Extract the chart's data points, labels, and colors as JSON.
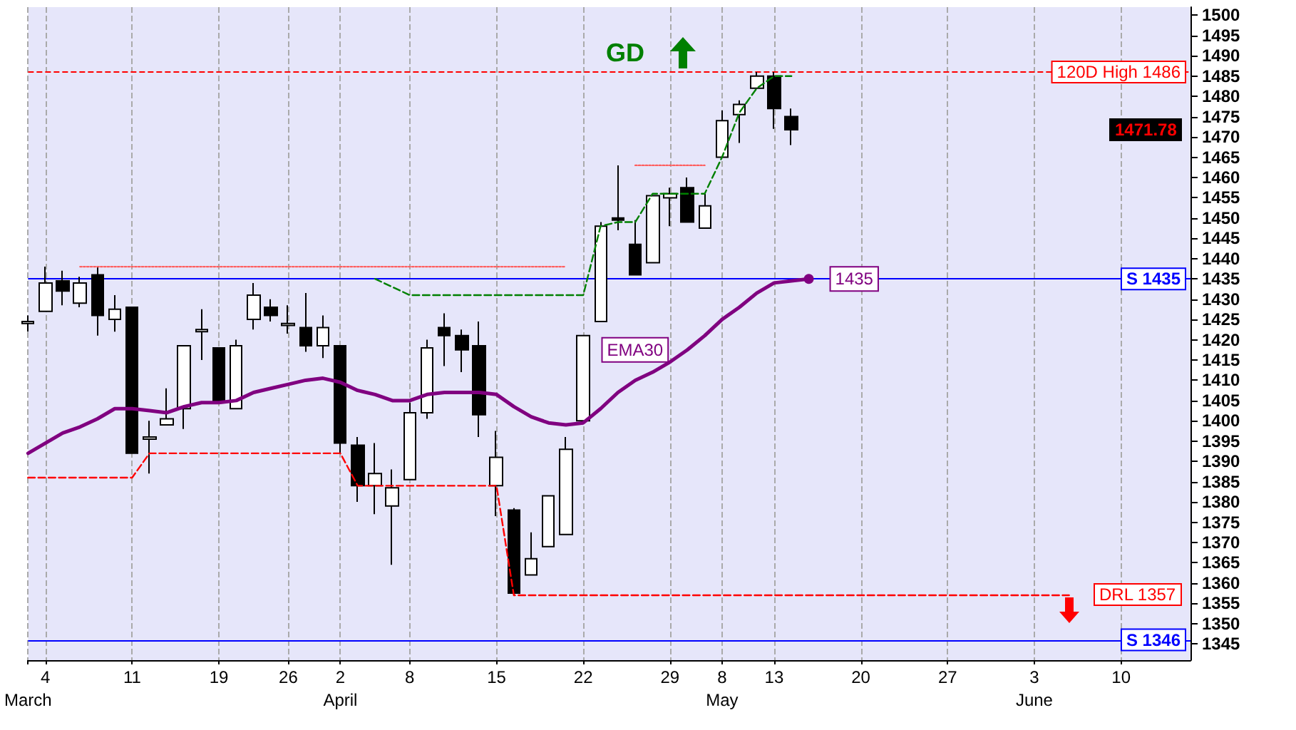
{
  "chart_data": {
    "type": "candlestick",
    "categories": [
      "\nMarch",
      "4",
      null,
      null,
      null,
      null,
      "11",
      null,
      null,
      null,
      null,
      "19",
      null,
      null,
      null,
      "26",
      null,
      null,
      "2\nApril",
      null,
      null,
      null,
      "8",
      null,
      null,
      null,
      null,
      "15",
      null,
      null,
      null,
      null,
      "22",
      null,
      null,
      null,
      null,
      "29",
      null,
      null,
      "8\nMay",
      null,
      null,
      "13",
      null,
      null,
      null,
      null,
      "20",
      null,
      null,
      null,
      null,
      "27",
      null,
      null,
      null,
      null,
      "3\nJune",
      null,
      null,
      null,
      null,
      "10",
      null,
      null,
      null,
      null
    ],
    "ohlc": [
      [
        1424,
        1426,
        1422,
        1424.5
      ],
      [
        1427,
        1438,
        1427,
        1434
      ],
      [
        1434.5,
        1437,
        1428.5,
        1432
      ],
      [
        1429,
        1435.5,
        1428,
        1434
      ],
      [
        1436,
        1438,
        1421,
        1426
      ],
      [
        1425,
        1431,
        1422,
        1427.5
      ],
      [
        1428,
        1428,
        1392,
        1392
      ],
      [
        1395.5,
        1400,
        1387,
        1396
      ],
      [
        1399,
        1408,
        1399,
        1400.5
      ],
      [
        1403,
        1418.5,
        1398,
        1418.5
      ],
      [
        1422,
        1427.5,
        1415,
        1422.5
      ],
      [
        1418,
        1418,
        1404.5,
        1404.5
      ],
      [
        1403,
        1420,
        1403,
        1418.5
      ],
      [
        1425,
        1434,
        1422.5,
        1431
      ],
      [
        1428,
        1430,
        1424.5,
        1426
      ],
      [
        1423.5,
        1428.5,
        1421.5,
        1424
      ],
      [
        1423,
        1431.5,
        1417,
        1418.5
      ],
      [
        1418.5,
        1426,
        1415.5,
        1423
      ],
      [
        1418.5,
        1418.5,
        1392,
        1394.5
      ],
      [
        1394,
        1396,
        1380,
        1384
      ],
      [
        1384,
        1394.5,
        1377,
        1387
      ],
      [
        1379,
        1388,
        1364.5,
        1383.5
      ],
      [
        1385.5,
        1404.5,
        1385.5,
        1402
      ],
      [
        1402,
        1420,
        1400.5,
        1418
      ],
      [
        1423,
        1426.5,
        1413.5,
        1421
      ],
      [
        1421,
        1422.5,
        1412,
        1417.5
      ],
      [
        1418.5,
        1424.5,
        1396,
        1401.5
      ],
      [
        1384,
        1397.5,
        1376.5,
        1391
      ],
      [
        1378,
        1378.5,
        1357,
        1357.5
      ],
      [
        1362,
        1372.5,
        1362,
        1366
      ],
      [
        1369,
        1381.5,
        1369,
        1381.5
      ],
      [
        1372,
        1396,
        1372,
        1393
      ],
      [
        1400,
        1421,
        1400,
        1421
      ],
      [
        1424.5,
        1449,
        1424.5,
        1448
      ],
      [
        1450,
        1463,
        1447,
        1449.5
      ],
      [
        1443.5,
        1449.5,
        1436,
        1436
      ],
      [
        1439,
        1455.5,
        1439,
        1455.5
      ],
      [
        1455,
        1457.5,
        1448,
        1456
      ],
      [
        1457.5,
        1460,
        1449,
        1449
      ],
      [
        1447.5,
        1456,
        1447.5,
        1453
      ],
      [
        1465,
        1476.5,
        1465,
        1474
      ],
      [
        1475.5,
        1479,
        1468.5,
        1478
      ],
      [
        1482,
        1486,
        1482,
        1485
      ],
      [
        1485,
        1486,
        1472,
        1477
      ],
      [
        1475,
        1477,
        1468,
        1471.78
      ],
      null,
      null,
      null,
      null,
      null,
      null,
      null,
      null,
      null,
      null,
      null,
      null,
      null,
      null,
      null,
      null,
      null,
      null,
      null,
      null,
      null,
      null,
      null
    ],
    "series": [
      {
        "type": "line",
        "name": "EMA30",
        "color": "#800080",
        "values": [
          1392,
          1394.5,
          1397,
          1398.5,
          1400.5,
          1403,
          1403,
          1402.5,
          1402,
          1403.5,
          1404.5,
          1404.5,
          1405,
          1407,
          1408,
          1409,
          1410,
          1410.5,
          1409.5,
          1407.5,
          1406.5,
          1405,
          1405,
          1406.5,
          1407,
          1407,
          1407,
          1406.5,
          1403.5,
          1401,
          1399.5,
          1399,
          1399.5,
          1403,
          1407,
          1410,
          1412,
          1414.5,
          1417.5,
          1421,
          1425,
          1428,
          1431.5,
          1434,
          1434.5,
          1435,
          null,
          null,
          null,
          null,
          null,
          null,
          null,
          null,
          null,
          null,
          null,
          null,
          null,
          null,
          null,
          null,
          null,
          null,
          null,
          null,
          null,
          null
        ],
        "value_labels": [
          null,
          null,
          null,
          null,
          null,
          null,
          null,
          null,
          null,
          null,
          null,
          null,
          null,
          null,
          null,
          null,
          null,
          null,
          null,
          null,
          null,
          null,
          null,
          null,
          null,
          null,
          null,
          null,
          null,
          null,
          null,
          null,
          null,
          null,
          null,
          null,
          null,
          null,
          null,
          null,
          null,
          null,
          null,
          null,
          null,
          "1435",
          null,
          null,
          null,
          null,
          null,
          null,
          null,
          null,
          null,
          null,
          null,
          null,
          null,
          null,
          null,
          null,
          null,
          null,
          null,
          null,
          null,
          null
        ]
      },
      {
        "type": "line",
        "color": "#ff0000",
        "line_style": "dashed",
        "values": [
          1386,
          1386,
          1386,
          1386,
          1386,
          1386,
          1386,
          1392,
          1392,
          1392,
          1392,
          1392,
          1392,
          1392,
          1392,
          1392,
          1392,
          1392,
          1392,
          1384,
          1384,
          1384,
          1384,
          1384,
          1384,
          1384,
          1384,
          1384,
          1357,
          1357,
          1357,
          1357,
          1357,
          1357,
          1357,
          1357,
          1357,
          1357,
          1357,
          1357,
          1357,
          1357,
          1357,
          1357,
          1357,
          1357,
          1357,
          1357,
          1357,
          1357,
          1357,
          1357,
          1357,
          1357,
          1357,
          1357,
          1357,
          1357,
          1357,
          1357,
          1357,
          null,
          null,
          null,
          null,
          null,
          null,
          null
        ]
      },
      {
        "type": "line",
        "color": "#008000",
        "line_style": "dashed",
        "values": [
          null,
          null,
          null,
          null,
          null,
          null,
          null,
          null,
          null,
          null,
          null,
          null,
          null,
          null,
          null,
          null,
          null,
          null,
          null,
          null,
          1435,
          1433,
          1431,
          1431,
          1431,
          1431,
          1431,
          1431,
          1431,
          1431,
          1431,
          1431,
          1431,
          1448,
          1449,
          1449,
          1456,
          1456,
          1456,
          1456,
          1465,
          1476,
          1482,
          1485,
          1485,
          null,
          null,
          null,
          null,
          null,
          null,
          null,
          null,
          null,
          null,
          null,
          null,
          null,
          null,
          null,
          null,
          null,
          null,
          null,
          null,
          null,
          null,
          null
        ]
      },
      {
        "type": "line",
        "color": "#ff6060",
        "line_style": "dotted",
        "values": [
          null,
          null,
          null,
          1438,
          1438,
          1438,
          1438,
          1438,
          1438,
          1438,
          1438,
          1438,
          1438,
          1438,
          1438,
          1438,
          1438,
          1438,
          1438,
          1438,
          1438,
          1438,
          1438,
          1438,
          1438,
          1438,
          1438,
          1438,
          1438,
          1438,
          1438,
          1438,
          null,
          null,
          null,
          1463,
          1463,
          1463,
          1463,
          1463,
          null,
          null,
          null,
          null,
          null,
          null,
          null,
          null,
          null,
          null,
          null,
          null,
          null,
          null,
          null,
          null,
          null,
          null,
          null,
          null,
          null,
          null,
          null,
          null,
          null,
          null,
          null,
          null
        ]
      }
    ],
    "ylim": [
      1341,
      1502
    ],
    "yticks": [
      1345,
      1350,
      1355,
      1360,
      1365,
      1370,
      1375,
      1380,
      1385,
      1390,
      1395,
      1400,
      1405,
      1410,
      1415,
      1420,
      1425,
      1430,
      1435,
      1440,
      1445,
      1450,
      1455,
      1460,
      1465,
      1470,
      1475,
      1480,
      1485,
      1490,
      1495,
      1500
    ],
    "ref_lines": [
      {
        "axis": "y",
        "value": 1486,
        "label": "120D High 1486",
        "color": "#ff0000",
        "line_style": "dashed"
      },
      {
        "axis": "y",
        "value": 1435,
        "label": "S 1435",
        "color": "#0000ff",
        "line_style": "solid"
      },
      {
        "axis": "y",
        "value": 1346,
        "label": "S 1346",
        "color": "#0000ff",
        "line_style": "solid"
      }
    ],
    "annotations": [
      "GD",
      "DRL 1357",
      "1471.78"
    ],
    "grid": "x",
    "legend": false,
    "marker": "none"
  }
}
